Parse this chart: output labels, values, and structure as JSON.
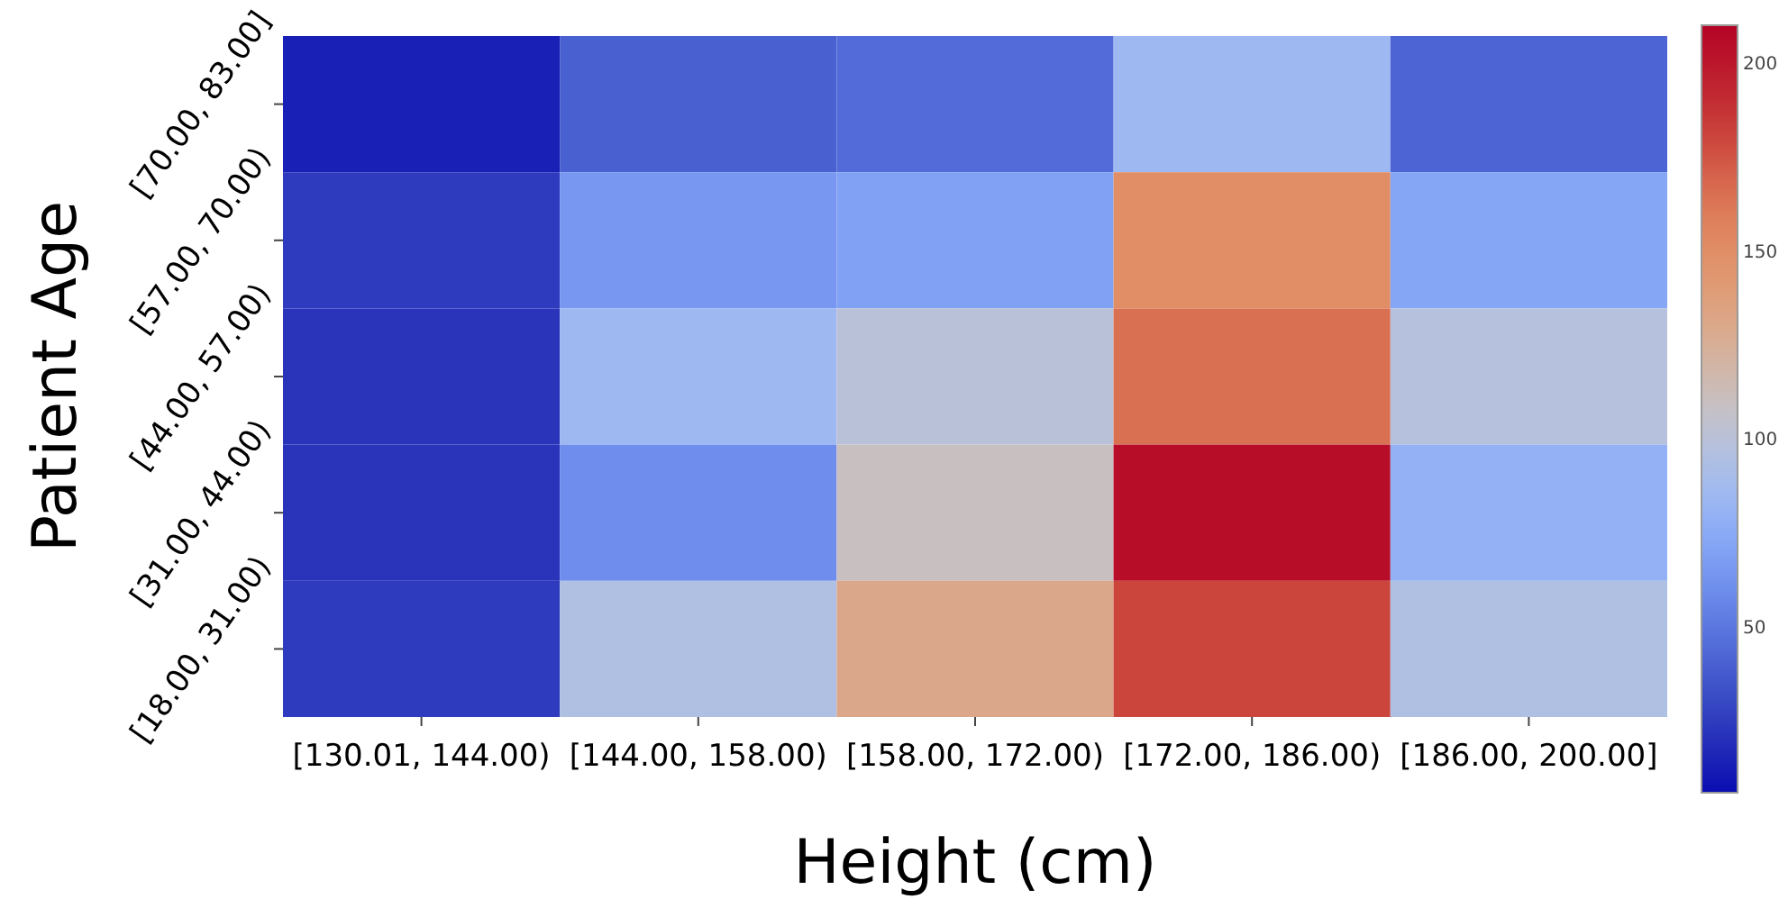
{
  "chart_data": {
    "type": "heatmap",
    "xlabel": "Height (cm)",
    "ylabel": "Patient Age",
    "categories": [
      "[130.01, 144.00)",
      "[144.00, 158.00)",
      "[158.00, 172.00)",
      "[172.00, 186.00)",
      "[186.00, 200.00]"
    ],
    "y_categories": [
      "[70.00, 83.00]",
      "[57.00, 70.00)",
      "[44.00, 57.00)",
      "[31.00, 44.00)",
      "[18.00, 31.00)"
    ],
    "cells": [
      [
        14,
        40,
        45,
        85,
        42
      ],
      [
        25,
        65,
        70,
        150,
        72
      ],
      [
        22,
        85,
        100,
        165,
        98
      ],
      [
        22,
        60,
        110,
        205,
        80
      ],
      [
        25,
        95,
        130,
        180,
        95
      ]
    ],
    "clim": [
      6,
      210
    ],
    "cticks": [
      50,
      100,
      150,
      200
    ]
  }
}
